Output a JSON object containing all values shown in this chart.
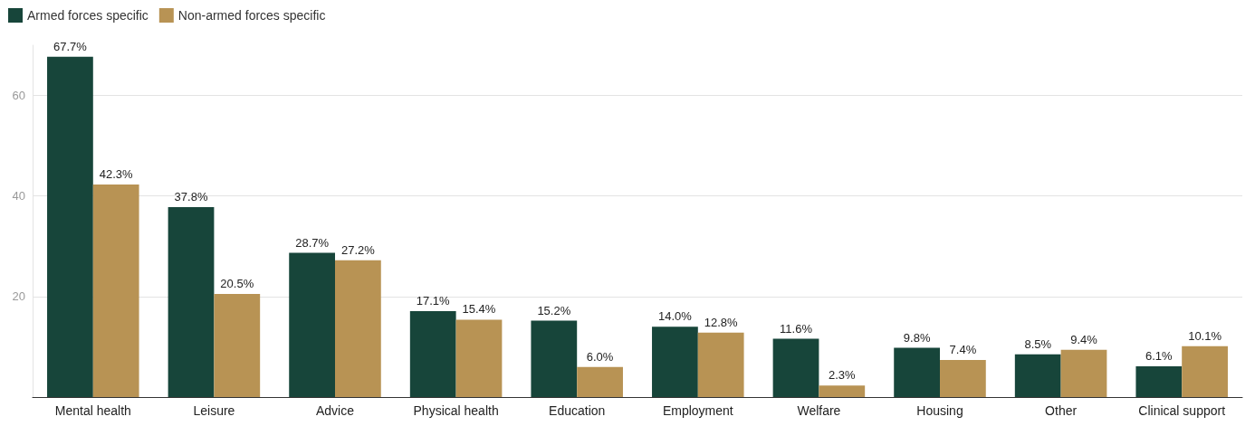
{
  "chart_data": {
    "type": "bar",
    "categories": [
      "Mental health",
      "Leisure",
      "Advice",
      "Physical health",
      "Education",
      "Employment",
      "Welfare",
      "Housing",
      "Other",
      "Clinical support"
    ],
    "series": [
      {
        "name": "Armed forces specific",
        "color": "#17453a",
        "values": [
          67.7,
          37.8,
          28.7,
          17.1,
          15.2,
          14.0,
          11.6,
          9.8,
          8.5,
          6.1
        ],
        "value_labels": [
          "67.7%",
          "37.8%",
          "28.7%",
          "17.1%",
          "15.2%",
          "14.0%",
          "11.6%",
          "9.8%",
          "8.5%",
          "6.1%"
        ]
      },
      {
        "name": "Non-armed forces specific",
        "color": "#b89354",
        "values": [
          42.3,
          20.5,
          27.2,
          15.4,
          6.0,
          12.8,
          2.3,
          7.4,
          9.4,
          10.1
        ],
        "value_labels": [
          "42.3%",
          "20.5%",
          "27.2%",
          "15.4%",
          "6.0%",
          "12.8%",
          "2.3%",
          "7.4%",
          "9.4%",
          "10.1%"
        ]
      }
    ],
    "ylim": [
      0,
      70
    ],
    "yticks": [
      20,
      40,
      60
    ],
    "grid": "y",
    "legend": "top left"
  }
}
